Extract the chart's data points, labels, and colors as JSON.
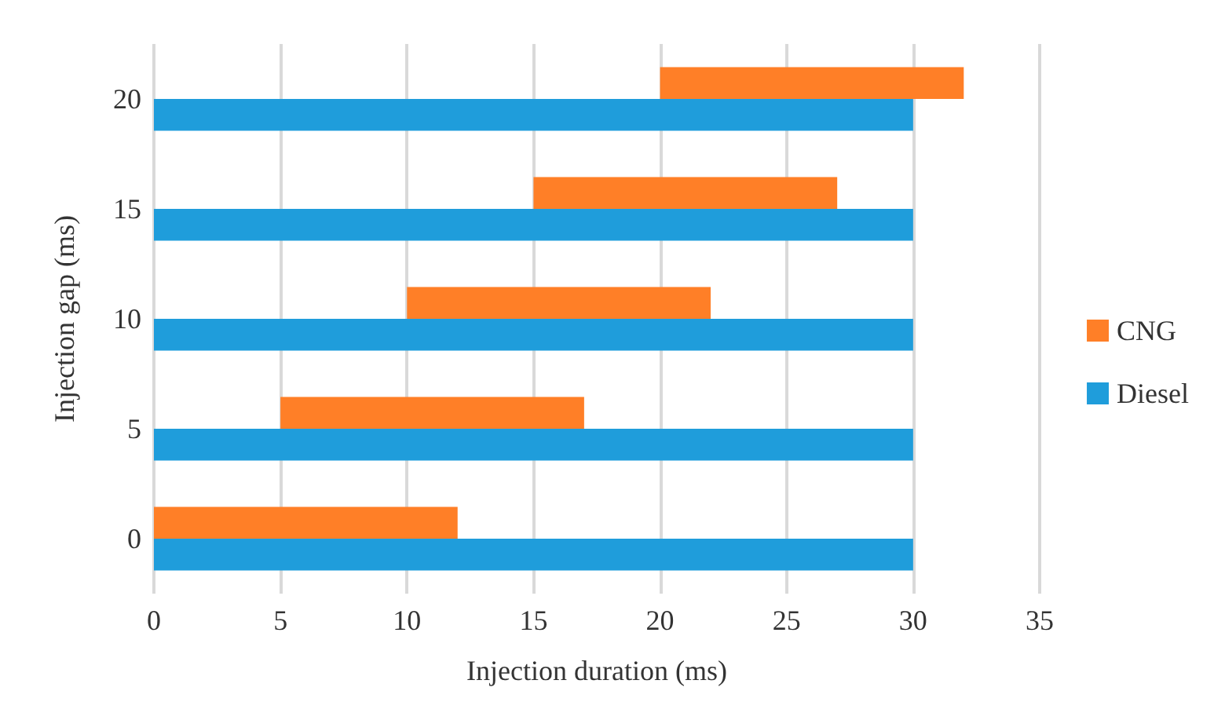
{
  "chart_data": {
    "type": "bar",
    "orientation": "horizontal",
    "xlabel": "Injection duration (ms)",
    "ylabel": "Injection gap (ms)",
    "categories": [
      "20",
      "15",
      "10",
      "5",
      "0"
    ],
    "series": [
      {
        "name": "CNG",
        "color": "#ff7f27",
        "base": [
          20,
          15,
          10,
          5,
          0
        ],
        "values": [
          12,
          12,
          12,
          12,
          12
        ]
      },
      {
        "name": "Diesel",
        "color": "#1f9ddb",
        "base": [
          0,
          0,
          0,
          0,
          0
        ],
        "values": [
          30,
          30,
          30,
          30,
          30
        ]
      }
    ],
    "xlim": [
      0,
      35
    ],
    "xticks": [
      0,
      5,
      10,
      15,
      20,
      25,
      30,
      35
    ],
    "grid": "x",
    "legend": "right"
  }
}
